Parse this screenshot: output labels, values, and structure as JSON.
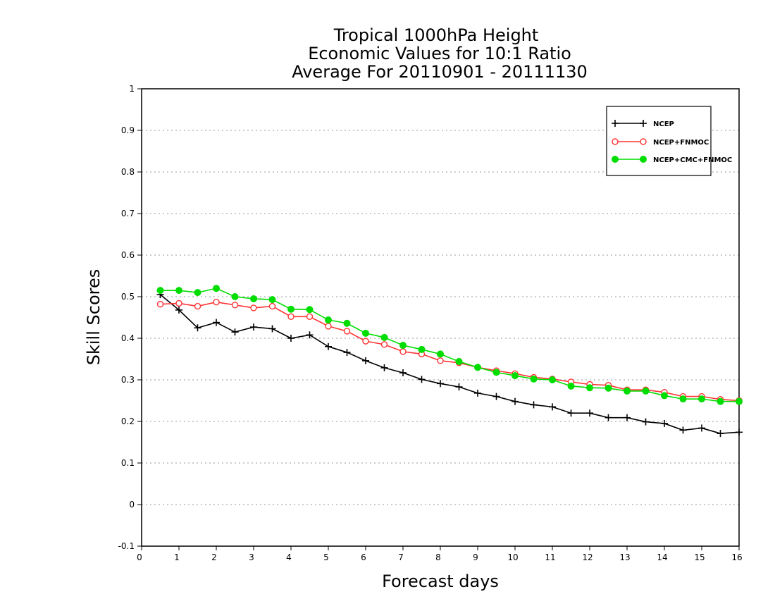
{
  "chart_data": {
    "type": "line",
    "title_lines": [
      "Tropical 1000hPa Height",
      "Economic Values for 10:1 Ratio",
      "Average For 20110901 - 20111130"
    ],
    "xlabel": "Forecast days",
    "ylabel": "Skill Scores",
    "xlim": [
      0,
      16
    ],
    "ylim": [
      -0.1,
      1
    ],
    "x_ticks": [
      "0",
      "1",
      "2",
      "3",
      "4",
      "5",
      "6",
      "7",
      "8",
      "9",
      "10",
      "11",
      "12",
      "13",
      "14",
      "15",
      "16"
    ],
    "y_ticks": [
      "-0.1",
      "0",
      "0.1",
      "0.2",
      "0.3",
      "0.4",
      "0.5",
      "0.6",
      "0.7",
      "0.8",
      "0.9",
      "1"
    ],
    "grid": "horizontal dotted",
    "legend_position": "top-right",
    "x": [
      0.5,
      1.0,
      1.5,
      2.0,
      2.5,
      3.0,
      3.5,
      4.0,
      4.5,
      5.0,
      5.5,
      6.0,
      6.5,
      7.0,
      7.5,
      8.0,
      8.5,
      9.0,
      9.5,
      10.0,
      10.5,
      11.0,
      11.5,
      12.0,
      12.5,
      13.0,
      13.5,
      14.0,
      14.5,
      15.0,
      15.5,
      16.0
    ],
    "series": [
      {
        "name": "NCEP",
        "color": "#000000",
        "marker": "plus",
        "values": [
          0.505,
          0.468,
          0.425,
          0.438,
          0.415,
          0.427,
          0.423,
          0.4,
          0.408,
          0.38,
          0.366,
          0.346,
          0.329,
          0.317,
          0.301,
          0.291,
          0.283,
          0.268,
          0.26,
          0.248,
          0.24,
          0.235,
          0.22,
          0.22,
          0.209,
          0.209,
          0.199,
          0.195,
          0.179,
          0.184,
          0.171,
          0.174
        ]
      },
      {
        "name": "NCEP+FNMOC",
        "color": "#ff3333",
        "marker": "open-circle",
        "values": [
          0.482,
          0.484,
          0.477,
          0.487,
          0.48,
          0.473,
          0.477,
          0.452,
          0.452,
          0.429,
          0.417,
          0.393,
          0.385,
          0.368,
          0.362,
          0.346,
          0.341,
          0.33,
          0.322,
          0.315,
          0.306,
          0.302,
          0.295,
          0.289,
          0.287,
          0.276,
          0.276,
          0.27,
          0.26,
          0.26,
          0.253,
          0.25
        ]
      },
      {
        "name": "NCEP+CMC+FNMOC",
        "color": "#00dd00",
        "marker": "filled-circle",
        "values": [
          0.515,
          0.515,
          0.51,
          0.52,
          0.5,
          0.495,
          0.493,
          0.47,
          0.469,
          0.444,
          0.436,
          0.412,
          0.402,
          0.383,
          0.373,
          0.362,
          0.344,
          0.33,
          0.318,
          0.31,
          0.302,
          0.3,
          0.285,
          0.281,
          0.28,
          0.273,
          0.273,
          0.262,
          0.254,
          0.254,
          0.248,
          0.248
        ]
      }
    ]
  }
}
